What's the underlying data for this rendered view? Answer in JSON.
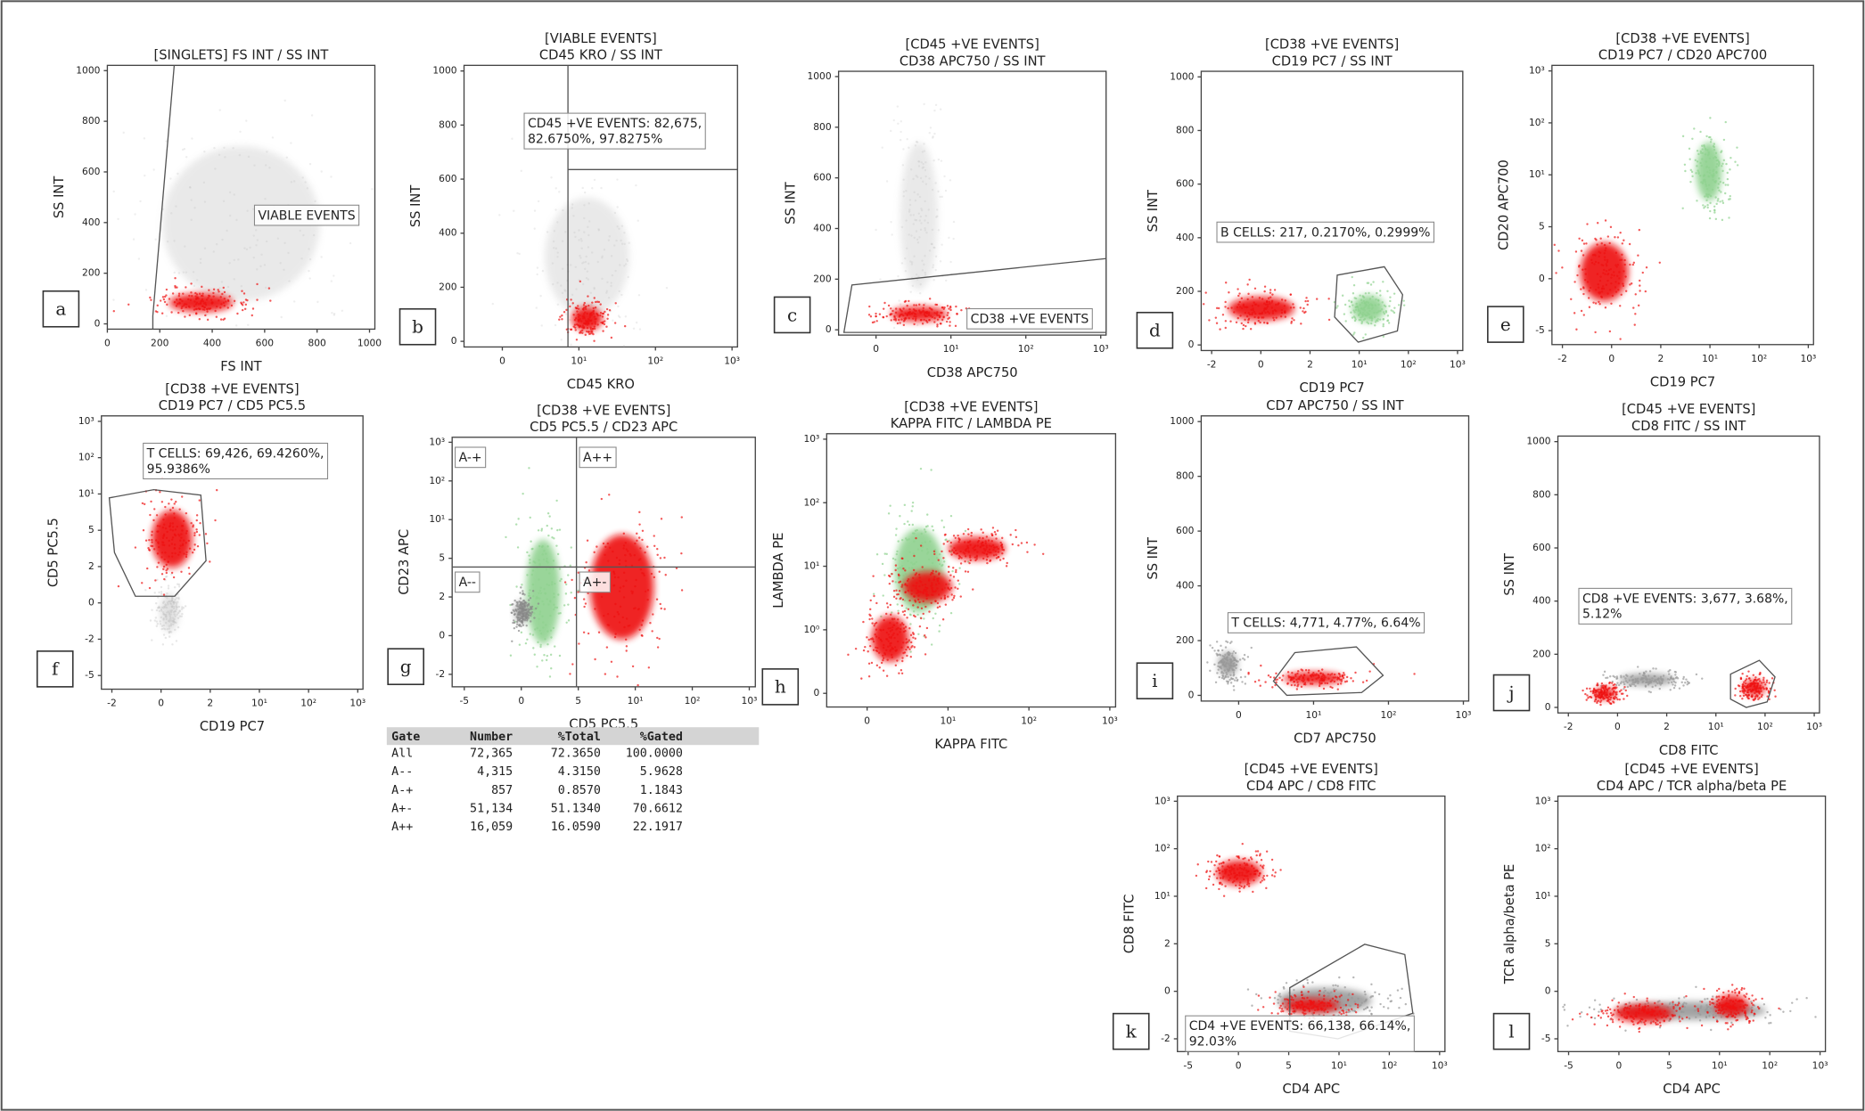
{
  "panels": [
    {
      "letter": "a",
      "title": [
        "[SINGLETS] FS INT / SS INT"
      ],
      "x_label": "FS INT",
      "y_label": "SS INT",
      "x_ticks": [
        "0",
        "200",
        "400",
        "600",
        "800",
        "1000"
      ],
      "y_ticks": [
        "0",
        "200",
        "400",
        "600",
        "800",
        "1000"
      ],
      "gates": [
        {
          "lines": [
            "VIABLE EVENTS"
          ]
        }
      ]
    },
    {
      "letter": "b",
      "title": [
        "[VIABLE EVENTS]",
        "CD45 KRO / SS INT"
      ],
      "x_label": "CD45 KRO",
      "y_label": "SS INT",
      "x_ticks": [
        "0",
        "10¹",
        "10²",
        "10³"
      ],
      "y_ticks": [
        "0",
        "200",
        "400",
        "600",
        "800",
        "1000"
      ],
      "gates": [
        {
          "lines": [
            "CD45 +VE EVENTS: 82,675,",
            "82.6750%, 97.8275%"
          ]
        }
      ]
    },
    {
      "letter": "c",
      "title": [
        "[CD45 +VE EVENTS]",
        "CD38 APC750 / SS INT"
      ],
      "x_label": "CD38 APC750",
      "y_label": "SS INT",
      "x_ticks": [
        "0",
        "10¹",
        "10²",
        "10³"
      ],
      "y_ticks": [
        "0",
        "200",
        "400",
        "600",
        "800",
        "1000"
      ],
      "gates": [
        {
          "lines": [
            "CD38 +VE EVENTS"
          ]
        }
      ]
    },
    {
      "letter": "d",
      "title": [
        "[CD38 +VE EVENTS]",
        "CD19 PC7 / SS INT"
      ],
      "x_label": "CD19 PC7",
      "y_label": "SS INT",
      "x_ticks": [
        "-2",
        "0",
        "2",
        "10¹",
        "10²",
        "10³"
      ],
      "y_ticks": [
        "0",
        "200",
        "400",
        "600",
        "800",
        "1000"
      ],
      "gates": [
        {
          "lines": [
            "B CELLS: 217, 0.2170%, 0.2999%"
          ]
        }
      ]
    },
    {
      "letter": "e",
      "title": [
        "[CD38 +VE EVENTS]",
        "CD19 PC7 / CD20 APC700"
      ],
      "x_label": "CD19 PC7",
      "y_label": "CD20 APC700",
      "x_ticks": [
        "-2",
        "0",
        "2",
        "10¹",
        "10²",
        "10³"
      ],
      "y_ticks": [
        "-5",
        "0",
        "5",
        "10¹",
        "10²",
        "10³"
      ],
      "gates": []
    },
    {
      "letter": "f",
      "title": [
        "[CD38 +VE EVENTS]",
        "CD19 PC7 / CD5 PC5.5"
      ],
      "x_label": "CD19 PC7",
      "y_label": "CD5 PC5.5",
      "x_ticks": [
        "-2",
        "0",
        "2",
        "10¹",
        "10²",
        "10³"
      ],
      "y_ticks": [
        "-5",
        "-2",
        "0",
        "2",
        "5",
        "10¹",
        "10²",
        "10³"
      ],
      "gates": [
        {
          "lines": [
            "T CELLS: 69,426, 69.4260%,",
            "95.9386%"
          ]
        }
      ]
    },
    {
      "letter": "g",
      "title": [
        "[CD38 +VE EVENTS]",
        "CD5 PC5.5 / CD23 APC"
      ],
      "x_label": "CD5 PC5.5",
      "y_label": "CD23 APC",
      "x_ticks": [
        "-5",
        "0",
        "5",
        "10¹",
        "10²",
        "10³"
      ],
      "y_ticks": [
        "-2",
        "0",
        "2",
        "5",
        "10¹",
        "10²",
        "10³"
      ],
      "gates": [
        {
          "lines": [
            "A-+"
          ]
        },
        {
          "lines": [
            "A++"
          ]
        },
        {
          "lines": [
            "A--"
          ]
        },
        {
          "lines": [
            "A+-"
          ]
        }
      ]
    },
    {
      "letter": "h",
      "title": [
        "[CD38 +VE EVENTS]",
        "KAPPA  FITC / LAMBDA PE"
      ],
      "x_label": "KAPPA  FITC",
      "y_label": "LAMBDA PE",
      "x_ticks": [
        "0",
        "10¹",
        "10²",
        "10³"
      ],
      "y_ticks": [
        "0",
        "10⁰",
        "10¹",
        "10²",
        "10³"
      ],
      "gates": []
    },
    {
      "letter": "i",
      "title": [
        "CD7  APC750 / SS INT"
      ],
      "x_label": "CD7  APC750",
      "y_label": "SS INT",
      "x_ticks": [
        "0",
        "10¹",
        "10²",
        "10³"
      ],
      "y_ticks": [
        "0",
        "200",
        "400",
        "600",
        "800",
        "1000"
      ],
      "gates": [
        {
          "lines": [
            "T CELLS: 4,771, 4.77%, 6.64%"
          ]
        }
      ]
    },
    {
      "letter": "j",
      "title": [
        "[CD45 +VE EVENTS]",
        "CD8 FITC / SS INT"
      ],
      "x_label": "CD8 FITC",
      "y_label": "SS INT",
      "x_ticks": [
        "-2",
        "0",
        "2",
        "10¹",
        "10²",
        "10³"
      ],
      "y_ticks": [
        "0",
        "200",
        "400",
        "600",
        "800",
        "1000"
      ],
      "gates": [
        {
          "lines": [
            "CD8 +VE EVENTS: 3,677, 3.68%,",
            "5.12%"
          ]
        }
      ]
    },
    {
      "letter": "k",
      "title": [
        "[CD45 +VE EVENTS]",
        "CD4 APC / CD8 FITC"
      ],
      "x_label": "CD4 APC",
      "y_label": "CD8 FITC",
      "x_ticks": [
        "-5",
        "0",
        "5",
        "10¹",
        "10²",
        "10³"
      ],
      "y_ticks": [
        "-2",
        "0",
        "2",
        "10¹",
        "10²",
        "10³"
      ],
      "gates": [
        {
          "lines": [
            "CD4 +VE EVENTS: 66,138, 66.14%,",
            "92.03%"
          ]
        }
      ]
    },
    {
      "letter": "l",
      "title": [
        "[CD45 +VE EVENTS]",
        "CD4 APC / TCR alpha/beta PE"
      ],
      "x_label": "CD4 APC",
      "y_label": "TCR alpha/beta PE",
      "x_ticks": [
        "-5",
        "0",
        "5",
        "10¹",
        "10²",
        "10³"
      ],
      "y_ticks": [
        "-5",
        "0",
        "5",
        "10¹",
        "10²",
        "10³"
      ],
      "gates": []
    }
  ],
  "table": {
    "header": [
      "Gate",
      "Number",
      "%Total",
      "%Gated"
    ],
    "rows": [
      [
        "All",
        "72,365",
        "72.3650",
        "100.0000"
      ],
      [
        "A--",
        "4,315",
        "4.3150",
        "5.9628"
      ],
      [
        "A-+",
        "857",
        "0.8570",
        "1.1843"
      ],
      [
        "A+-",
        "51,134",
        "51.1340",
        "70.6612"
      ],
      [
        "A++",
        "16,059",
        "16.0590",
        "22.1917"
      ]
    ]
  }
}
